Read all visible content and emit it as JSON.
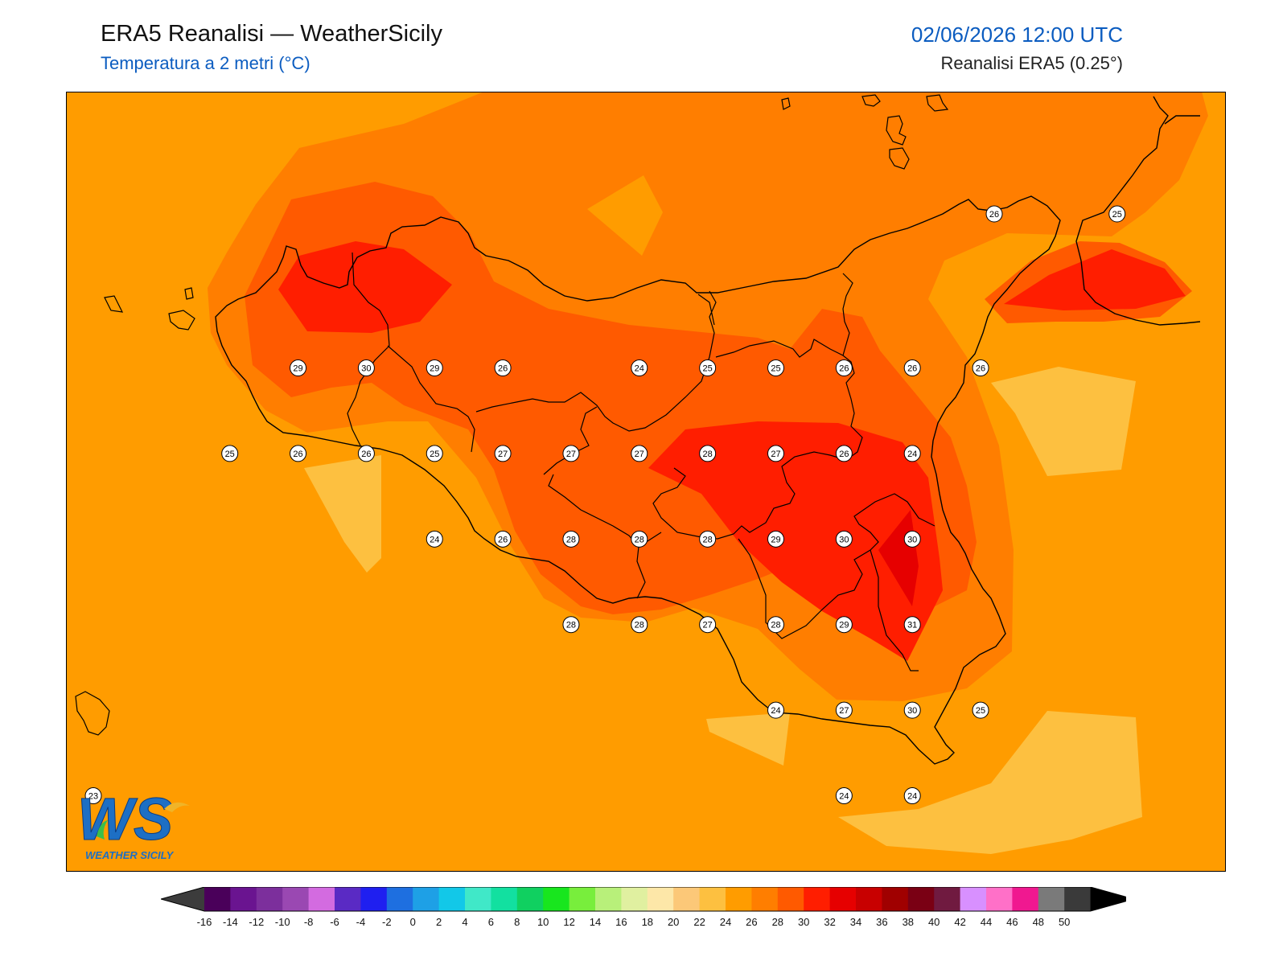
{
  "header": {
    "title": "ERA5 Reanalisi — WeatherSicily",
    "subtitle": "Temperatura a 2 metri (°C)",
    "datetime": "02/06/2026 12:00 UTC",
    "source": "Reanalisi ERA5 (0.25°)"
  },
  "logo": {
    "icon": "weather-sicily-logo",
    "text": "WS",
    "brand": "WEATHER SICILY"
  },
  "colorbar": {
    "ticks": [
      "-16",
      "-14",
      "-12",
      "-10",
      "-8",
      "-6",
      "-4",
      "-2",
      "0",
      "2",
      "4",
      "6",
      "8",
      "10",
      "12",
      "14",
      "16",
      "18",
      "20",
      "22",
      "24",
      "26",
      "28",
      "30",
      "32",
      "34",
      "36",
      "38",
      "40",
      "42",
      "44",
      "46",
      "48",
      "50"
    ],
    "colors": [
      "#4a005a",
      "#6a1490",
      "#7c2f9c",
      "#9a48b2",
      "#d36be0",
      "#5a2ac4",
      "#1f1ff0",
      "#1e6fe0",
      "#1ea0e6",
      "#12c8e8",
      "#40e8c8",
      "#12e0a0",
      "#10d060",
      "#18e61e",
      "#78ee3c",
      "#b8f07a",
      "#e0f0a0",
      "#fde7a8",
      "#fcc878",
      "#fdc040",
      "#ff9c00",
      "#ff7e00",
      "#ff5a00",
      "#ff1e00",
      "#e60000",
      "#c80000",
      "#a00000",
      "#7a0014",
      "#701a40",
      "#d890ff",
      "#ff70c8",
      "#f01890",
      "#7a7a7a",
      "#3a3a3a"
    ],
    "under_color": "#3c3c3c",
    "over_color": "#000000"
  },
  "stations": [
    {
      "value": "26",
      "lon": 15.05,
      "lat": 38.45
    },
    {
      "value": "25",
      "lon": 15.5,
      "lat": 38.45
    },
    {
      "value": "29",
      "lon": 12.5,
      "lat": 38.0
    },
    {
      "value": "30",
      "lon": 12.75,
      "lat": 38.0
    },
    {
      "value": "29",
      "lon": 13.0,
      "lat": 38.0
    },
    {
      "value": "26",
      "lon": 13.25,
      "lat": 38.0
    },
    {
      "value": "24",
      "lon": 13.75,
      "lat": 38.0
    },
    {
      "value": "25",
      "lon": 14.0,
      "lat": 38.0
    },
    {
      "value": "25",
      "lon": 14.25,
      "lat": 38.0
    },
    {
      "value": "26",
      "lon": 14.5,
      "lat": 38.0
    },
    {
      "value": "26",
      "lon": 14.75,
      "lat": 38.0
    },
    {
      "value": "26",
      "lon": 15.0,
      "lat": 38.0
    },
    {
      "value": "25",
      "lon": 12.25,
      "lat": 37.75
    },
    {
      "value": "26",
      "lon": 12.5,
      "lat": 37.75
    },
    {
      "value": "26",
      "lon": 12.75,
      "lat": 37.75
    },
    {
      "value": "25",
      "lon": 13.0,
      "lat": 37.75
    },
    {
      "value": "27",
      "lon": 13.25,
      "lat": 37.75
    },
    {
      "value": "27",
      "lon": 13.5,
      "lat": 37.75
    },
    {
      "value": "27",
      "lon": 13.75,
      "lat": 37.75
    },
    {
      "value": "28",
      "lon": 14.0,
      "lat": 37.75
    },
    {
      "value": "27",
      "lon": 14.25,
      "lat": 37.75
    },
    {
      "value": "26",
      "lon": 14.5,
      "lat": 37.75
    },
    {
      "value": "24",
      "lon": 14.75,
      "lat": 37.75
    },
    {
      "value": "24",
      "lon": 13.0,
      "lat": 37.5
    },
    {
      "value": "26",
      "lon": 13.25,
      "lat": 37.5
    },
    {
      "value": "28",
      "lon": 13.5,
      "lat": 37.5
    },
    {
      "value": "28",
      "lon": 13.75,
      "lat": 37.5
    },
    {
      "value": "28",
      "lon": 14.0,
      "lat": 37.5
    },
    {
      "value": "29",
      "lon": 14.25,
      "lat": 37.5
    },
    {
      "value": "30",
      "lon": 14.5,
      "lat": 37.5
    },
    {
      "value": "30",
      "lon": 14.75,
      "lat": 37.5
    },
    {
      "value": "28",
      "lon": 13.5,
      "lat": 37.25
    },
    {
      "value": "28",
      "lon": 13.75,
      "lat": 37.25
    },
    {
      "value": "27",
      "lon": 14.0,
      "lat": 37.25
    },
    {
      "value": "28",
      "lon": 14.25,
      "lat": 37.25
    },
    {
      "value": "29",
      "lon": 14.5,
      "lat": 37.25
    },
    {
      "value": "31",
      "lon": 14.75,
      "lat": 37.25
    },
    {
      "value": "24",
      "lon": 14.25,
      "lat": 37.0
    },
    {
      "value": "27",
      "lon": 14.5,
      "lat": 37.0
    },
    {
      "value": "30",
      "lon": 14.75,
      "lat": 37.0
    },
    {
      "value": "25",
      "lon": 15.0,
      "lat": 37.0
    },
    {
      "value": "23",
      "lon": 11.75,
      "lat": 36.75
    },
    {
      "value": "24",
      "lon": 14.5,
      "lat": 36.75
    },
    {
      "value": "24",
      "lon": 14.75,
      "lat": 36.75
    }
  ]
}
